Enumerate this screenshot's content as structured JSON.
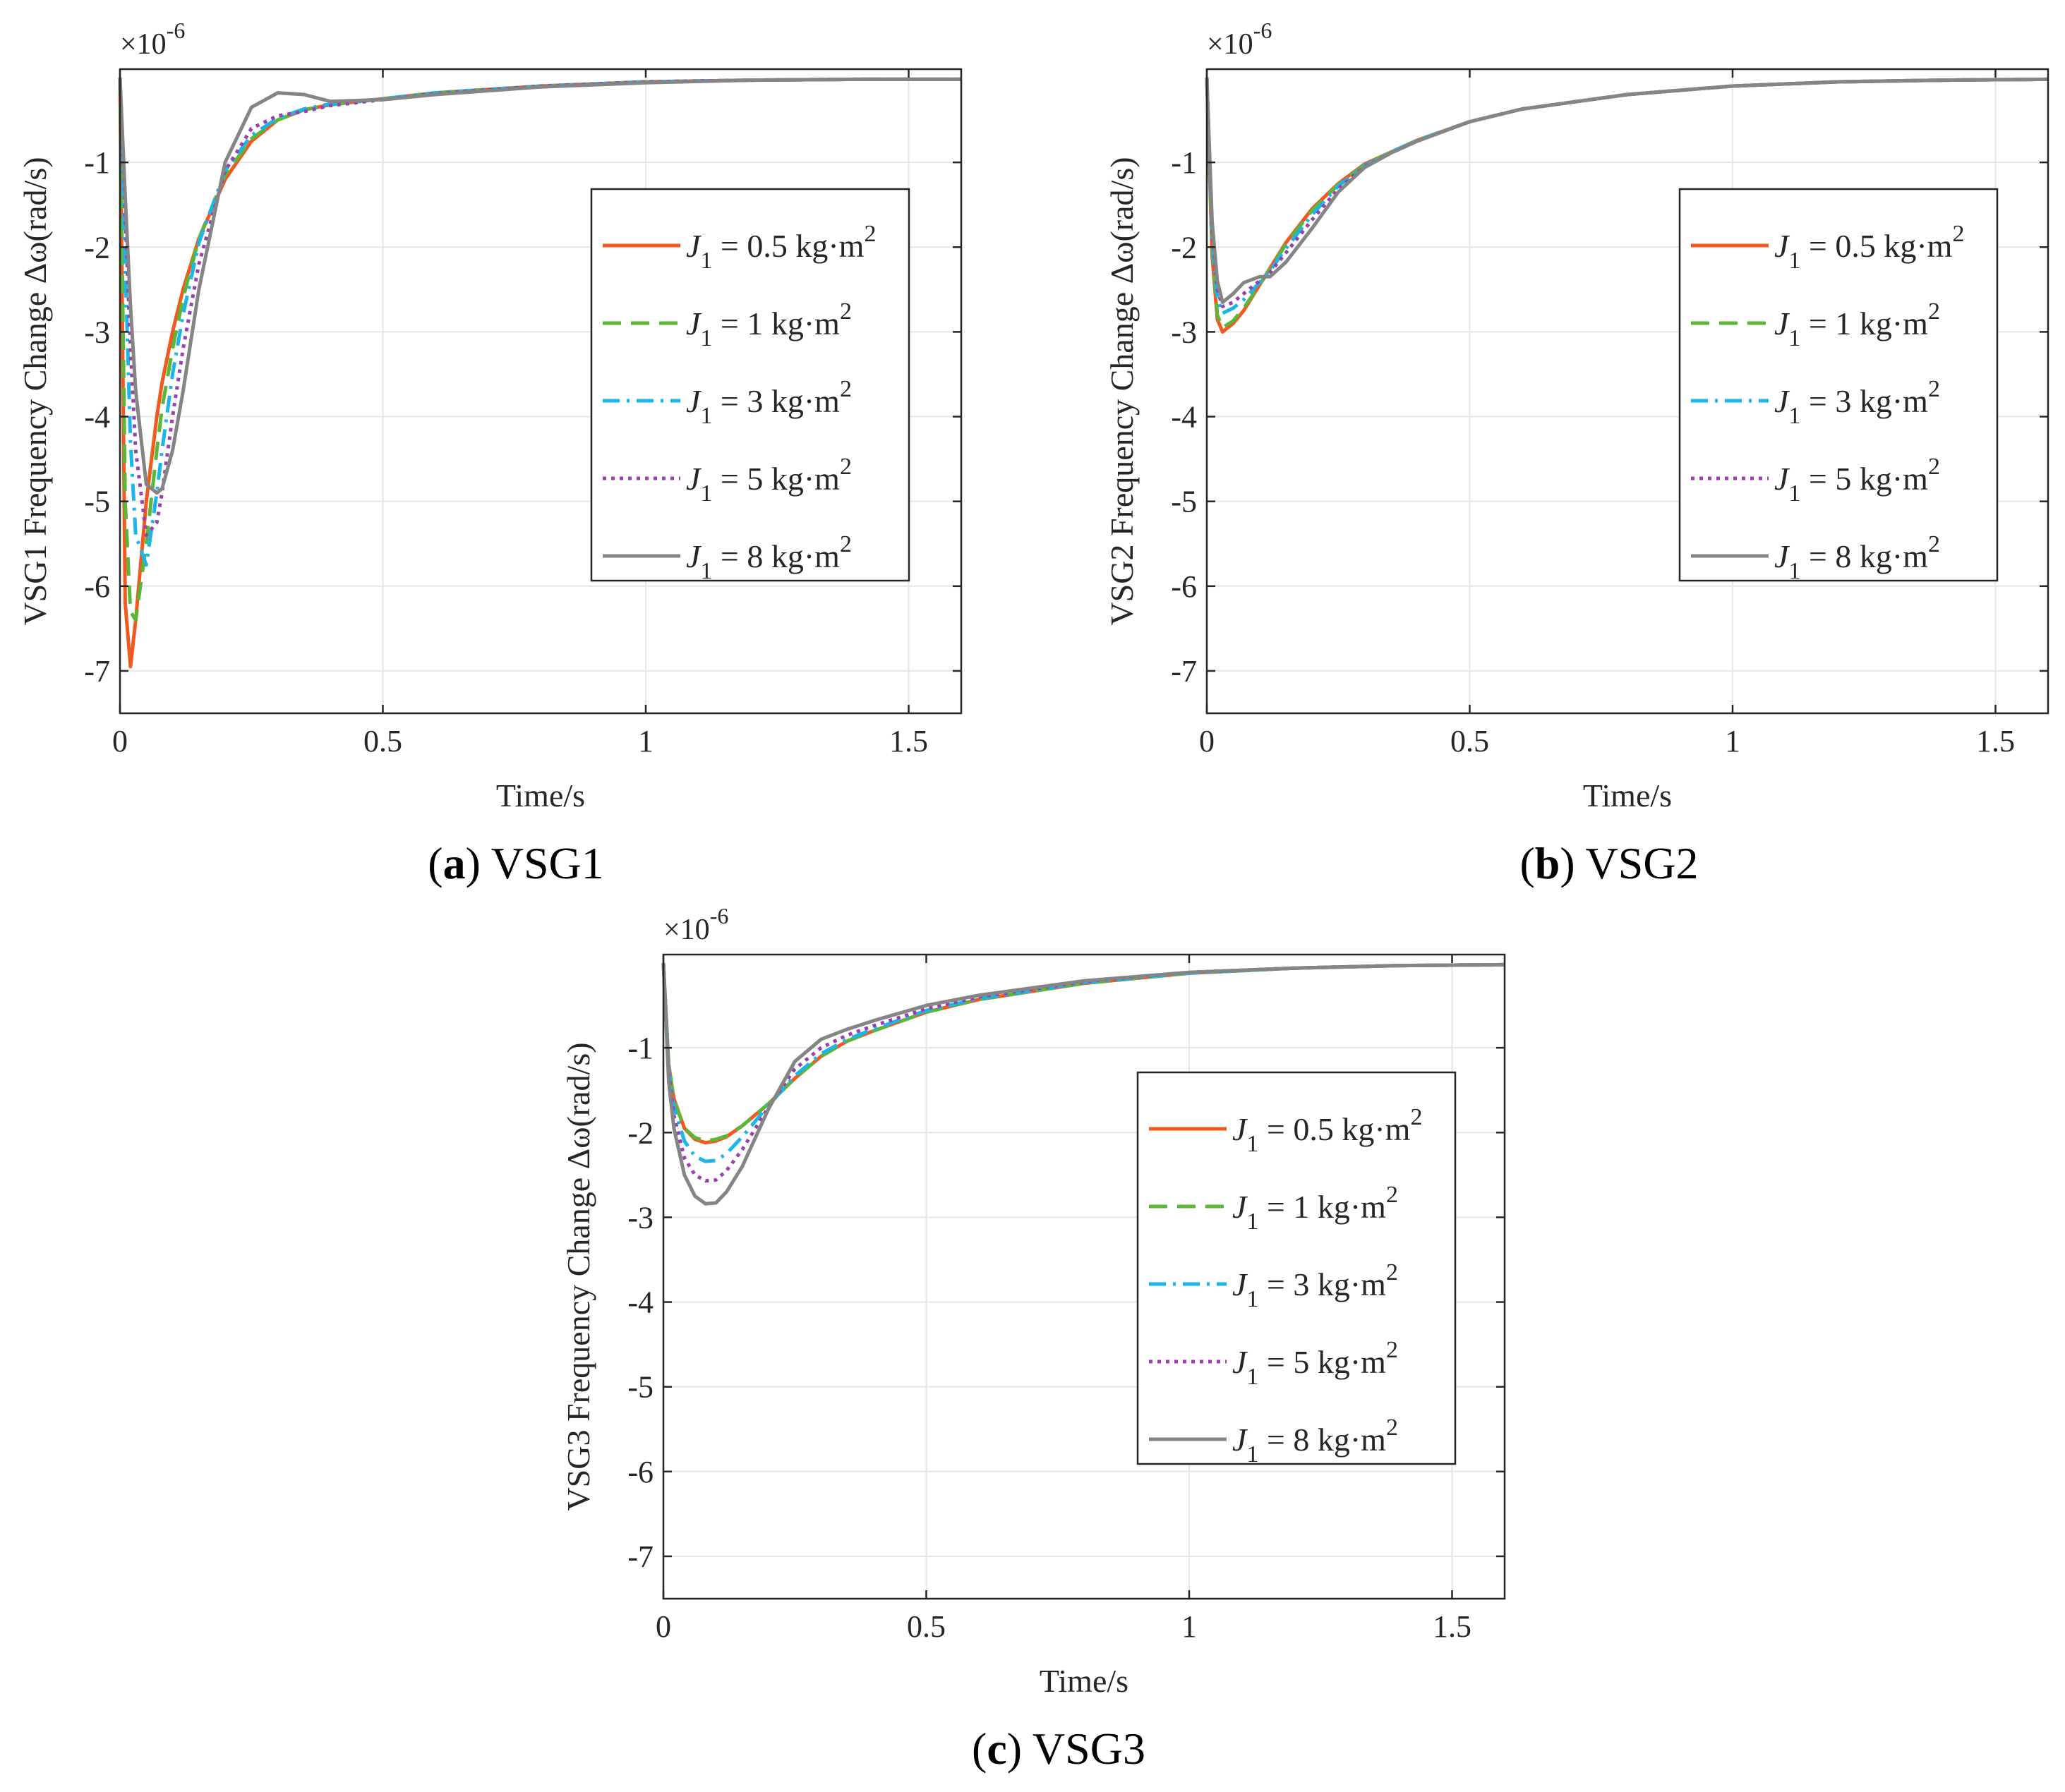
{
  "figure": {
    "shared": {
      "xlabel": "Time/s",
      "x_ticks": [
        0,
        0.5,
        1,
        1.5
      ],
      "x_tick_labels": [
        "0",
        "0.5",
        "1",
        "1.5"
      ],
      "y_ticks": [
        -7,
        -6,
        -5,
        -4,
        -3,
        -2,
        -1
      ],
      "y_tick_labels": [
        "-7",
        "-6",
        "-5",
        "-4",
        "-3",
        "-2",
        "-1"
      ],
      "exponent_label": "×10",
      "exponent_power": "-6",
      "legend_symbol": "J",
      "legend_subscript": "1",
      "legend_equals": "=",
      "legend_unit": "kg·m",
      "legend_power": "2"
    },
    "legend_styles": [
      {
        "color": "#f05a1f",
        "dash": "solid"
      },
      {
        "color": "#5db53a",
        "dash": "dashed"
      },
      {
        "color": "#1ab6e8",
        "dash": "dashdot"
      },
      {
        "color": "#9c3fb0",
        "dash": "dotted"
      },
      {
        "color": "#858585",
        "dash": "solid"
      }
    ]
  },
  "chart_data": [
    {
      "type": "line",
      "title": "",
      "caption_letter": "a",
      "caption_text": " VSG1",
      "ylabel": "VSG1 Frequency Change Δω(rad/s)",
      "xlim": [
        0,
        1.6
      ],
      "ylim": [
        -7.5,
        0.1
      ],
      "y_scale": "×10^-6",
      "grid": true,
      "legend_position": "right-center",
      "x": [
        0,
        0.01,
        0.02,
        0.03,
        0.05,
        0.07,
        0.08,
        0.1,
        0.12,
        0.15,
        0.2,
        0.25,
        0.3,
        0.35,
        0.4,
        0.5,
        0.6,
        0.8,
        1.0,
        1.2,
        1.4,
        1.6
      ],
      "series": [
        {
          "name": "0.5",
          "values": [
            0,
            -6.2,
            -6.95,
            -6.4,
            -5.0,
            -4.0,
            -3.6,
            -3.0,
            -2.5,
            -1.9,
            -1.2,
            -0.75,
            -0.5,
            -0.38,
            -0.32,
            -0.25,
            -0.18,
            -0.1,
            -0.05,
            -0.03,
            -0.02,
            -0.02
          ]
        },
        {
          "name": "1",
          "values": [
            0,
            -5.0,
            -6.3,
            -6.4,
            -5.5,
            -4.4,
            -3.9,
            -3.2,
            -2.6,
            -1.9,
            -1.15,
            -0.72,
            -0.5,
            -0.38,
            -0.32,
            -0.25,
            -0.18,
            -0.1,
            -0.05,
            -0.03,
            -0.02,
            -0.02
          ]
        },
        {
          "name": "3",
          "values": [
            0,
            -2.2,
            -4.3,
            -5.4,
            -5.75,
            -4.9,
            -4.4,
            -3.5,
            -2.8,
            -1.95,
            -1.1,
            -0.68,
            -0.48,
            -0.37,
            -0.31,
            -0.25,
            -0.18,
            -0.1,
            -0.05,
            -0.03,
            -0.02,
            -0.02
          ]
        },
        {
          "name": "5",
          "values": [
            0,
            -1.6,
            -3.2,
            -4.4,
            -5.4,
            -5.25,
            -4.9,
            -4.0,
            -3.2,
            -2.2,
            -1.1,
            -0.6,
            -0.45,
            -0.4,
            -0.33,
            -0.26,
            -0.19,
            -0.1,
            -0.05,
            -0.03,
            -0.02,
            -0.02
          ]
        },
        {
          "name": "8",
          "values": [
            0,
            -1.4,
            -2.7,
            -3.7,
            -4.8,
            -4.9,
            -4.85,
            -4.4,
            -3.7,
            -2.5,
            -1.0,
            -0.35,
            -0.18,
            -0.2,
            -0.28,
            -0.26,
            -0.2,
            -0.11,
            -0.06,
            -0.03,
            -0.02,
            -0.02
          ]
        }
      ]
    },
    {
      "type": "line",
      "title": "",
      "caption_letter": "b",
      "caption_text": " VSG2",
      "ylabel": "VSG2 Frequency Change Δω(rad/s)",
      "xlim": [
        0,
        1.6
      ],
      "ylim": [
        -7.5,
        0.1
      ],
      "y_scale": "×10^-6",
      "grid": true,
      "legend_position": "right-center",
      "x": [
        0,
        0.01,
        0.02,
        0.03,
        0.05,
        0.07,
        0.1,
        0.12,
        0.15,
        0.2,
        0.25,
        0.3,
        0.35,
        0.4,
        0.5,
        0.6,
        0.8,
        1.0,
        1.2,
        1.4,
        1.6
      ],
      "series": [
        {
          "name": "0.5",
          "values": [
            0,
            -2.1,
            -2.85,
            -3.0,
            -2.9,
            -2.75,
            -2.45,
            -2.25,
            -1.95,
            -1.55,
            -1.25,
            -1.02,
            -0.88,
            -0.74,
            -0.52,
            -0.37,
            -0.2,
            -0.1,
            -0.05,
            -0.03,
            -0.02
          ]
        },
        {
          "name": "1",
          "values": [
            0,
            -2.0,
            -2.8,
            -2.95,
            -2.87,
            -2.72,
            -2.45,
            -2.26,
            -1.97,
            -1.57,
            -1.26,
            -1.03,
            -0.88,
            -0.74,
            -0.52,
            -0.37,
            -0.2,
            -0.1,
            -0.05,
            -0.03,
            -0.02
          ]
        },
        {
          "name": "3",
          "values": [
            0,
            -1.9,
            -2.6,
            -2.78,
            -2.72,
            -2.62,
            -2.42,
            -2.28,
            -2.02,
            -1.62,
            -1.28,
            -1.04,
            -0.88,
            -0.74,
            -0.52,
            -0.37,
            -0.2,
            -0.1,
            -0.05,
            -0.03,
            -0.02
          ]
        },
        {
          "name": "5",
          "values": [
            0,
            -1.8,
            -2.5,
            -2.7,
            -2.65,
            -2.55,
            -2.4,
            -2.3,
            -2.07,
            -1.68,
            -1.31,
            -1.05,
            -0.89,
            -0.75,
            -0.52,
            -0.37,
            -0.2,
            -0.1,
            -0.05,
            -0.03,
            -0.02
          ]
        },
        {
          "name": "8",
          "values": [
            0,
            -1.7,
            -2.4,
            -2.65,
            -2.55,
            -2.42,
            -2.35,
            -2.35,
            -2.18,
            -1.78,
            -1.35,
            -1.06,
            -0.89,
            -0.75,
            -0.52,
            -0.37,
            -0.2,
            -0.1,
            -0.05,
            -0.03,
            -0.02
          ]
        }
      ]
    },
    {
      "type": "line",
      "title": "",
      "caption_letter": "c",
      "caption_text": " VSG3",
      "ylabel": "VSG3 Frequency Change Δω(rad/s)",
      "xlim": [
        0,
        1.6
      ],
      "ylim": [
        -7.5,
        0.1
      ],
      "y_scale": "×10^-6",
      "grid": true,
      "legend_position": "right-center",
      "x": [
        0,
        0.01,
        0.02,
        0.04,
        0.06,
        0.08,
        0.1,
        0.12,
        0.15,
        0.2,
        0.25,
        0.3,
        0.35,
        0.4,
        0.5,
        0.6,
        0.8,
        1.0,
        1.2,
        1.4,
        1.6
      ],
      "series": [
        {
          "name": "0.5",
          "values": [
            0,
            -1.2,
            -1.6,
            -1.95,
            -2.08,
            -2.12,
            -2.1,
            -2.05,
            -1.92,
            -1.66,
            -1.36,
            -1.1,
            -0.92,
            -0.8,
            -0.58,
            -0.43,
            -0.24,
            -0.12,
            -0.06,
            -0.03,
            -0.02
          ]
        },
        {
          "name": "1",
          "values": [
            0,
            -1.2,
            -1.62,
            -1.95,
            -2.06,
            -2.1,
            -2.08,
            -2.04,
            -1.92,
            -1.66,
            -1.36,
            -1.1,
            -0.92,
            -0.8,
            -0.58,
            -0.43,
            -0.24,
            -0.12,
            -0.06,
            -0.03,
            -0.02
          ]
        },
        {
          "name": "3",
          "values": [
            0,
            -1.25,
            -1.7,
            -2.1,
            -2.28,
            -2.34,
            -2.33,
            -2.25,
            -2.05,
            -1.68,
            -1.33,
            -1.07,
            -0.9,
            -0.78,
            -0.56,
            -0.42,
            -0.23,
            -0.12,
            -0.06,
            -0.03,
            -0.02
          ]
        },
        {
          "name": "5",
          "values": [
            0,
            -1.3,
            -1.8,
            -2.3,
            -2.5,
            -2.57,
            -2.56,
            -2.45,
            -2.2,
            -1.7,
            -1.25,
            -1.0,
            -0.85,
            -0.74,
            -0.54,
            -0.4,
            -0.22,
            -0.11,
            -0.06,
            -0.03,
            -0.02
          ]
        },
        {
          "name": "8",
          "values": [
            0,
            -1.4,
            -1.95,
            -2.5,
            -2.75,
            -2.84,
            -2.83,
            -2.7,
            -2.4,
            -1.72,
            -1.16,
            -0.9,
            -0.78,
            -0.68,
            -0.5,
            -0.38,
            -0.21,
            -0.11,
            -0.06,
            -0.03,
            -0.02
          ]
        }
      ]
    }
  ]
}
